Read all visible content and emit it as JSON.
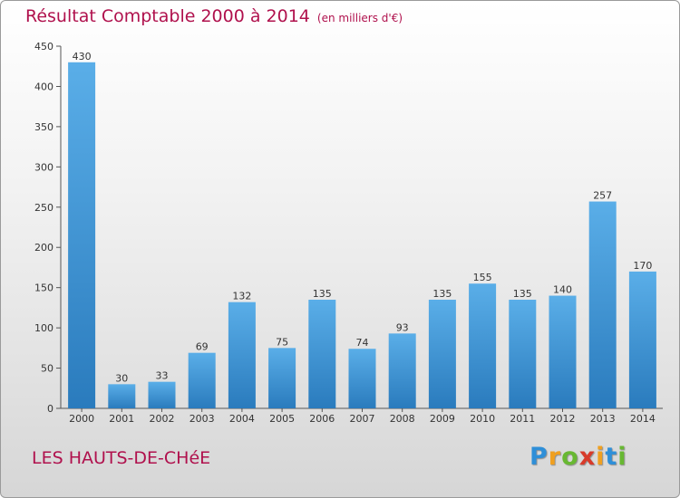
{
  "chart_data": {
    "type": "bar",
    "title": "Résultat Comptable 2000 à 2014",
    "subtitle": "(en milliers d'€)",
    "categories": [
      "2000",
      "2001",
      "2002",
      "2003",
      "2004",
      "2005",
      "2006",
      "2007",
      "2008",
      "2009",
      "2010",
      "2011",
      "2012",
      "2013",
      "2014"
    ],
    "values": [
      430,
      30,
      33,
      69,
      132,
      75,
      135,
      74,
      93,
      135,
      155,
      135,
      140,
      257,
      170
    ],
    "ylim": [
      0,
      450
    ],
    "yticks": [
      0,
      50,
      100,
      150,
      200,
      250,
      300,
      350,
      400,
      450
    ],
    "xlabel": "",
    "ylabel": "",
    "grid": false,
    "bar_color": "#3f96d8",
    "bar_color_dark": "#2878b8"
  },
  "commune": "LES HAUTS-DE-CHéE",
  "logo": {
    "letters": [
      "P",
      "r",
      "o",
      "x",
      "i",
      "t",
      "i"
    ],
    "colors": [
      "#2f8fd8",
      "#f0a020",
      "#68b832",
      "#d83a2a",
      "#f0a020",
      "#2f8fd8",
      "#68b832"
    ]
  }
}
